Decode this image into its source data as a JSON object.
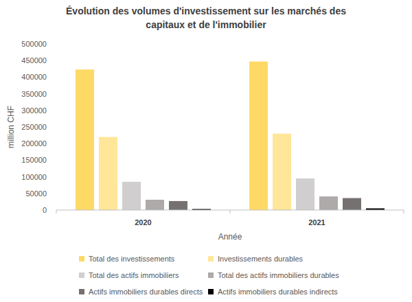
{
  "chart_data": {
    "type": "bar",
    "title": "Évolution des volumes d'investissement sur les marchés des capitaux et de l'immobilier",
    "x_label": "Année",
    "y_label": "million CHF",
    "categories": [
      "2020",
      "2021"
    ],
    "series": [
      {
        "name": "Total des investissements",
        "color": "#ffd966",
        "values": [
          423000,
          447000
        ]
      },
      {
        "name": "Investissements durables",
        "color": "#ffe699",
        "values": [
          220000,
          230000
        ]
      },
      {
        "name": "Total des actifs immobiliers",
        "color": "#d0cece",
        "values": [
          85000,
          95000
        ]
      },
      {
        "name": "Total des actifs immobiliers durables",
        "color": "#aeaaaa",
        "values": [
          31000,
          41000
        ]
      },
      {
        "name": "Actifs immobiliers durables directs",
        "color": "#767171",
        "values": [
          27000,
          36000
        ]
      },
      {
        "name": "Actifs immobiliers durables indirects",
        "color": "#000000",
        "values": [
          3000,
          5000
        ]
      }
    ],
    "ylim": [
      0,
      500000
    ],
    "yticks": [
      0,
      50000,
      100000,
      150000,
      200000,
      250000,
      300000,
      350000,
      400000,
      450000,
      500000
    ],
    "grid": false,
    "legend": "bottom"
  }
}
